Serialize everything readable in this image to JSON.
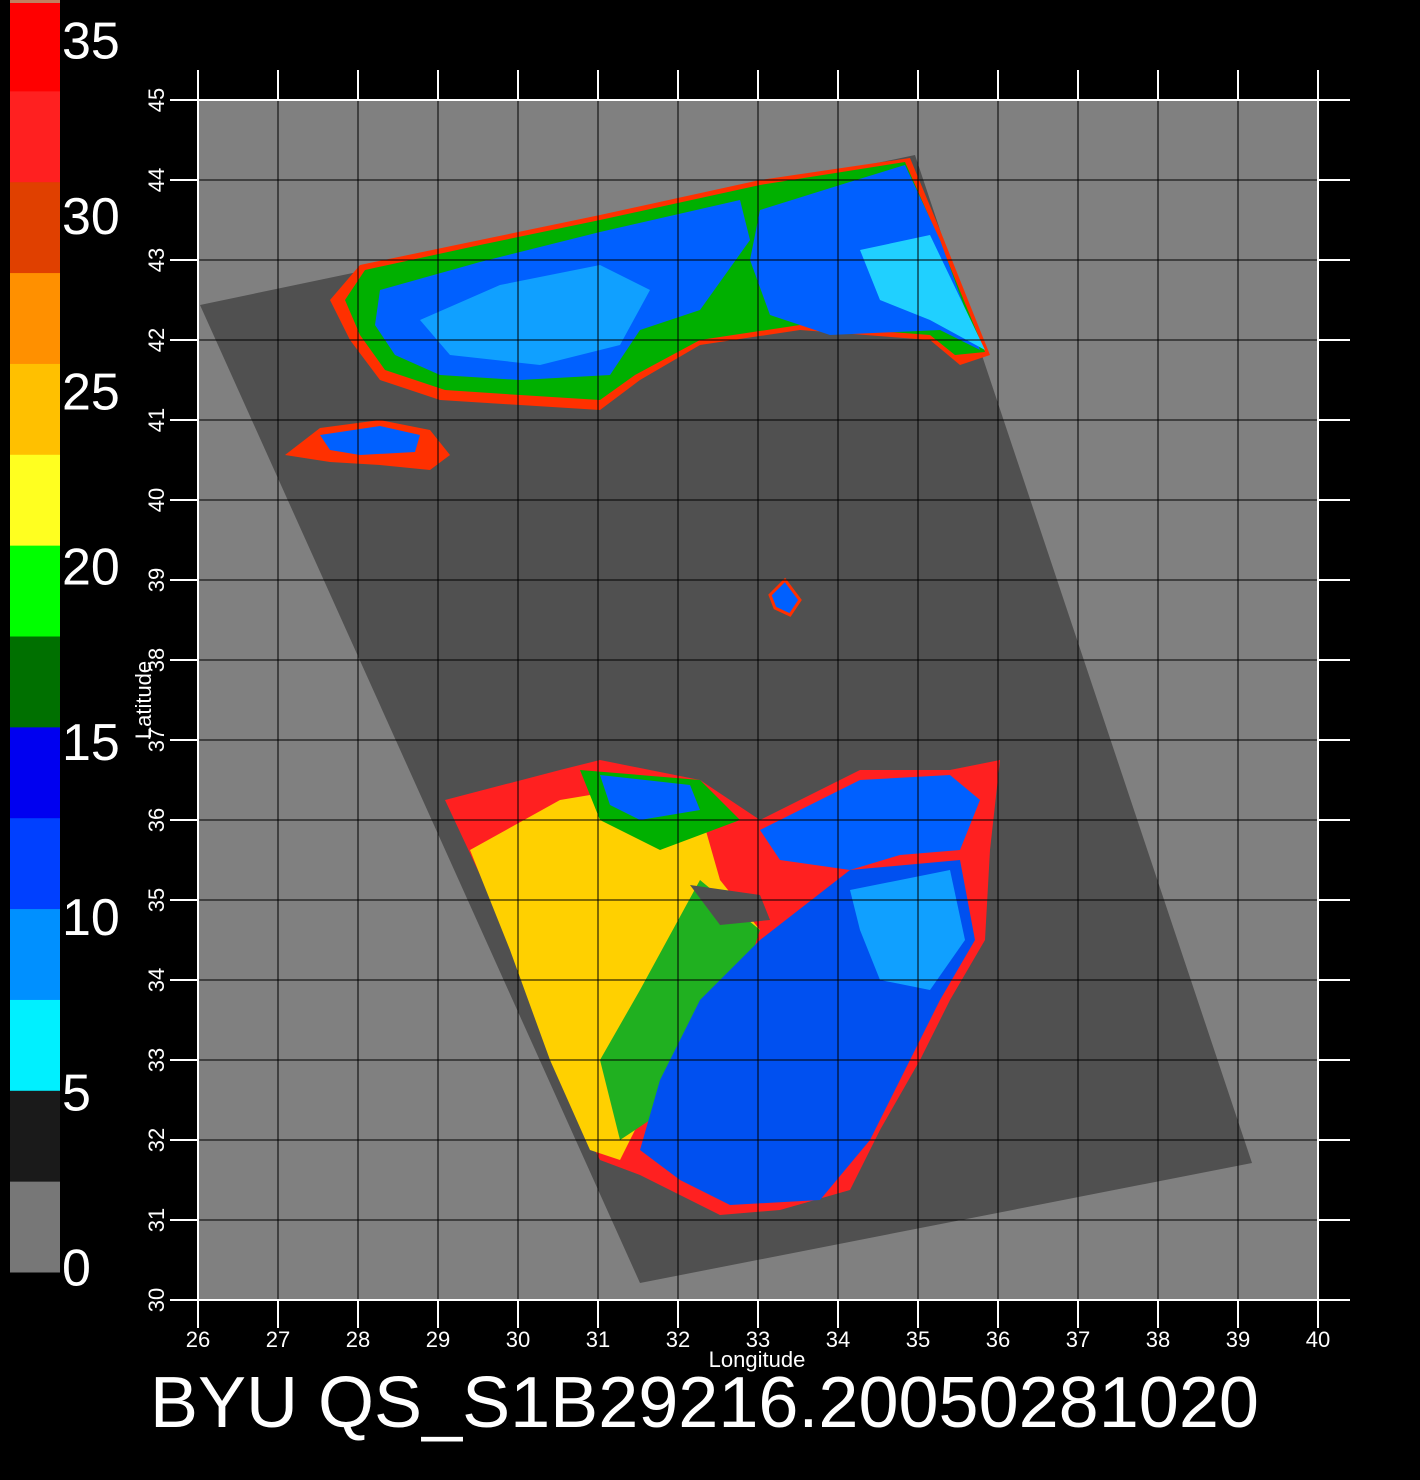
{
  "chart_data": {
    "type": "map",
    "title": "BYU QS_S1B29216.20050281020",
    "xlabel": "Longitude",
    "ylabel": "Latitude",
    "xlim": [
      26,
      40
    ],
    "ylim": [
      30,
      45
    ],
    "xticks": [
      26,
      27,
      28,
      29,
      30,
      31,
      32,
      33,
      34,
      35,
      36,
      37,
      38,
      39,
      40
    ],
    "yticks": [
      30,
      31,
      32,
      33,
      34,
      35,
      36,
      37,
      38,
      39,
      40,
      41,
      42,
      43,
      44,
      45
    ],
    "grid": true,
    "colorbar": {
      "lim": [
        0,
        35
      ],
      "ticks": [
        0,
        5,
        10,
        15,
        20,
        25,
        30,
        35
      ],
      "colors": [
        "#777777",
        "#1a1a1a",
        "#00f0ff",
        "#0090ff",
        "#0040ff",
        "#0000f0",
        "#007000",
        "#00ff00",
        "#ffff20",
        "#ffc000",
        "#ff9000",
        "#e04000",
        "#ff2020",
        "#ff0000"
      ]
    }
  }
}
